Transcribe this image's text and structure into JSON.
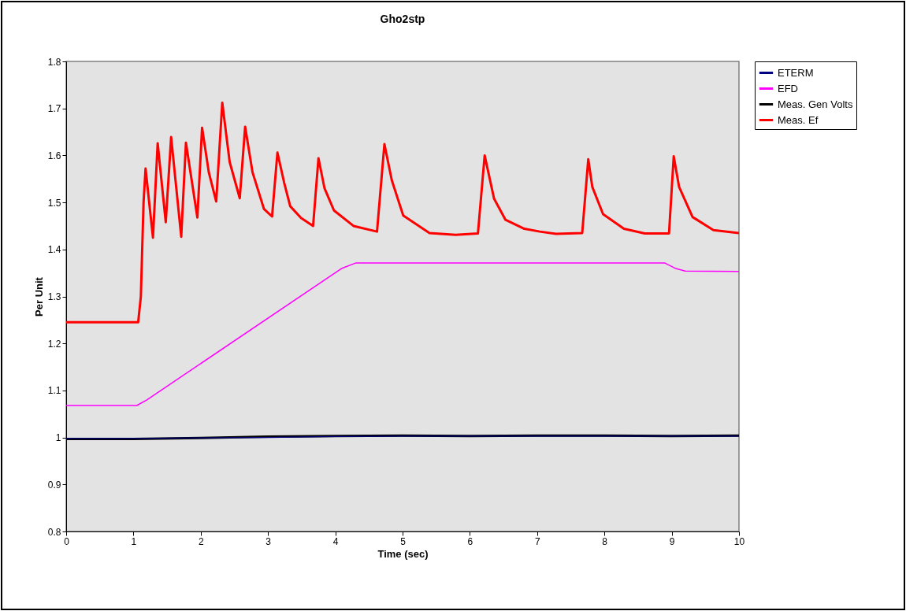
{
  "chart_data": {
    "type": "line",
    "title": "Gho2stp",
    "xlabel": "Time (sec)",
    "ylabel": "Per Unit",
    "xlim": [
      0,
      10
    ],
    "xticks": [
      0,
      1,
      2,
      3,
      4,
      5,
      6,
      7,
      8,
      9,
      10
    ],
    "ylim": [
      0.8,
      1.8
    ],
    "yticks": [
      0.8,
      0.9,
      1,
      1.1,
      1.2,
      1.3,
      1.4,
      1.5,
      1.6,
      1.7,
      1.8
    ],
    "grid": false,
    "legend": "right",
    "series": [
      {
        "name": "ETERM",
        "color": "#000080",
        "x": [
          0,
          1,
          2,
          3,
          4,
          5,
          6,
          7,
          8,
          9,
          10
        ],
        "values": [
          0.998,
          0.998,
          0.999,
          1.0,
          1.002,
          1.003,
          1.003,
          1.003,
          1.003,
          1.003,
          1.003
        ]
      },
      {
        "name": "EFD",
        "color": "#ff00ff",
        "x": [
          0,
          1.05,
          1.2,
          4.1,
          4.3,
          8.9,
          9.05,
          9.2,
          10
        ],
        "values": [
          1.068,
          1.068,
          1.08,
          1.36,
          1.371,
          1.371,
          1.36,
          1.354,
          1.353
        ]
      },
      {
        "name": "Meas. Gen Volts",
        "color": "#000000",
        "x": [
          0,
          1,
          2,
          3,
          4,
          5,
          6,
          7,
          8,
          9,
          10
        ],
        "values": [
          0.997,
          0.997,
          0.999,
          1.002,
          1.003,
          1.004,
          1.003,
          1.004,
          1.004,
          1.003,
          1.004
        ]
      },
      {
        "name": "Meas. Ef",
        "color": "#ff0000",
        "x": [
          0,
          1.07,
          1.11,
          1.15,
          1.18,
          1.29,
          1.36,
          1.48,
          1.56,
          1.71,
          1.78,
          1.95,
          2.02,
          2.12,
          2.23,
          2.32,
          2.43,
          2.58,
          2.66,
          2.77,
          2.94,
          3.06,
          3.14,
          3.24,
          3.33,
          3.49,
          3.67,
          3.75,
          3.84,
          3.98,
          4.27,
          4.62,
          4.73,
          4.84,
          5.01,
          5.4,
          5.79,
          6.12,
          6.22,
          6.36,
          6.53,
          6.81,
          7.04,
          7.28,
          7.67,
          7.76,
          7.82,
          7.98,
          8.29,
          8.6,
          8.96,
          9.03,
          9.11,
          9.31,
          9.62,
          10
        ],
        "values": [
          1.245,
          1.245,
          1.3,
          1.5,
          1.572,
          1.425,
          1.626,
          1.458,
          1.639,
          1.427,
          1.627,
          1.468,
          1.659,
          1.564,
          1.502,
          1.712,
          1.586,
          1.509,
          1.661,
          1.564,
          1.486,
          1.47,
          1.606,
          1.542,
          1.492,
          1.467,
          1.45,
          1.594,
          1.53,
          1.483,
          1.45,
          1.438,
          1.624,
          1.547,
          1.472,
          1.435,
          1.431,
          1.434,
          1.6,
          1.508,
          1.463,
          1.444,
          1.438,
          1.433,
          1.435,
          1.592,
          1.533,
          1.475,
          1.444,
          1.434,
          1.434,
          1.598,
          1.533,
          1.469,
          1.441,
          1.435
        ]
      }
    ]
  }
}
